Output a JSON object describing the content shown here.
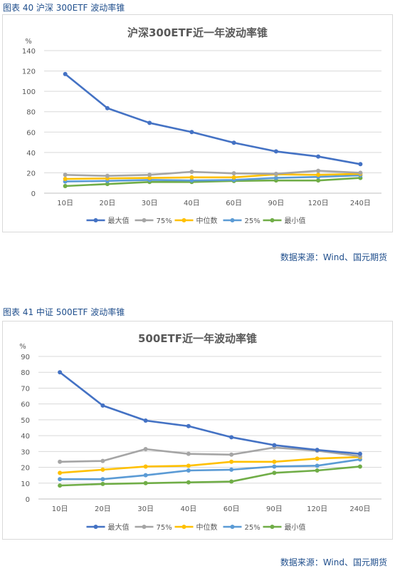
{
  "figures": [
    {
      "caption": "图表 40  沪深 300ETF 波动率锥",
      "source": "数据来源：Wind、国元期货"
    },
    {
      "caption": "图表 41  中证 500ETF 波动率锥",
      "source": "数据来源：Wind、国元期货"
    }
  ],
  "chart_data": [
    {
      "type": "line",
      "title": "沪深300ETF近一年波动率锥",
      "ylabel": "%",
      "ylim": [
        0,
        140
      ],
      "ystep": 20,
      "grid": true,
      "legend": "bottom",
      "categories": [
        "10日",
        "20日",
        "30日",
        "40日",
        "60日",
        "90日",
        "120日",
        "240日"
      ],
      "series": [
        {
          "name": "最大值",
          "color": "#4472c4",
          "values": [
            117,
            83.5,
            69,
            60,
            49.5,
            41,
            36,
            28.5
          ]
        },
        {
          "name": "75%",
          "color": "#a5a5a5",
          "values": [
            18,
            17,
            18,
            21,
            19.5,
            19,
            22,
            20
          ]
        },
        {
          "name": "中位数",
          "color": "#ffc000",
          "values": [
            14,
            14.5,
            15,
            15.5,
            15.5,
            18.5,
            18,
            19
          ]
        },
        {
          "name": "25%",
          "color": "#5b9bd5",
          "values": [
            11.5,
            12,
            13,
            12.5,
            13,
            15,
            16,
            17.5
          ]
        },
        {
          "name": "最小值",
          "color": "#70ad47",
          "values": [
            7,
            9,
            11,
            11,
            12,
            12.5,
            12.5,
            15
          ]
        }
      ]
    },
    {
      "type": "line",
      "title": "500ETF近一年波动率锥",
      "ylabel": "%",
      "ylim": [
        0,
        90
      ],
      "ystep": 10,
      "grid": true,
      "legend": "bottom",
      "categories": [
        "10日",
        "20日",
        "30日",
        "40日",
        "60日",
        "90日",
        "120日",
        "240日"
      ],
      "series": [
        {
          "name": "最大值",
          "color": "#4472c4",
          "values": [
            80,
            59,
            49.5,
            46,
            39,
            34,
            31,
            28.5
          ]
        },
        {
          "name": "75%",
          "color": "#a5a5a5",
          "values": [
            23.5,
            24,
            31.5,
            28.5,
            28,
            32.5,
            30.5,
            27
          ]
        },
        {
          "name": "中位数",
          "color": "#ffc000",
          "values": [
            16.5,
            18.5,
            20.5,
            21,
            23.5,
            23.5,
            25.5,
            26.5
          ]
        },
        {
          "name": "25%",
          "color": "#5b9bd5",
          "values": [
            12.5,
            12.5,
            15,
            18,
            18.5,
            20.5,
            21,
            25
          ]
        },
        {
          "name": "最小值",
          "color": "#70ad47",
          "values": [
            8.5,
            9.5,
            10,
            10.5,
            11,
            16.5,
            18,
            20.5
          ]
        }
      ]
    }
  ]
}
